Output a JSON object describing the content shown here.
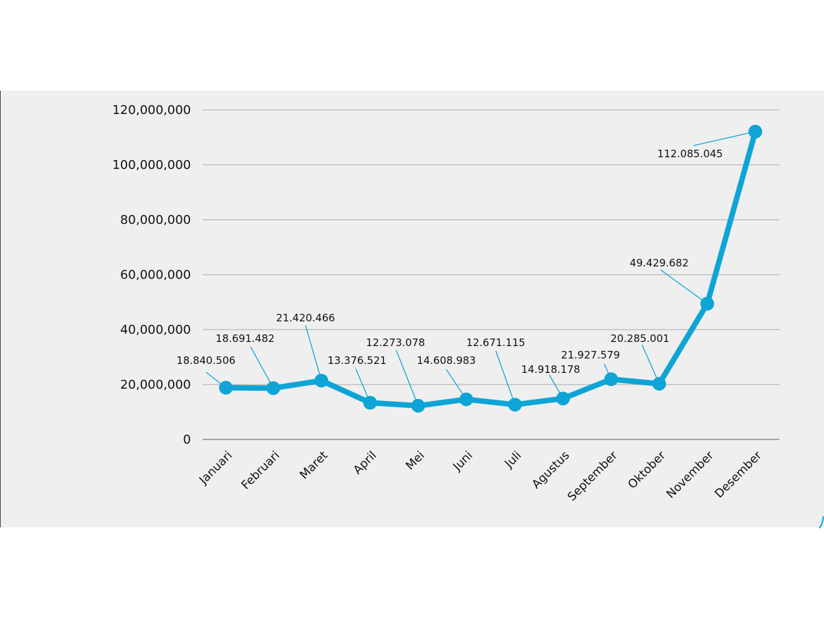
{
  "chart_data": {
    "type": "line",
    "title": "",
    "xlabel": "",
    "ylabel": "",
    "categories": [
      "Januari",
      "Februari",
      "Maret",
      "April",
      "Mei",
      "Juni",
      "Juli",
      "Agustus",
      "September",
      "Oktober",
      "November",
      "Desember"
    ],
    "series": [
      {
        "values": [
          18840506,
          18691482,
          21420466,
          13376521,
          12273078,
          14608983,
          12671115,
          14918178,
          21927579,
          20285001,
          49429682,
          112085045
        ],
        "color": "#0ea5d6"
      }
    ],
    "data_labels": [
      "18.840.506",
      "18.691.482",
      "21.420.466",
      "13.376.521",
      "12.273.078",
      "14.608.983",
      "12.671.115",
      "14.918.178",
      "21.927.579",
      "20.285.001",
      "49.429.682",
      "112.085.045"
    ],
    "yticks": [
      "0",
      "20,000,000",
      "40,000,000",
      "60,000,000",
      "80,000,000",
      "100,000,000",
      "120,000,000"
    ],
    "ylim": [
      0,
      120000000
    ],
    "grid": true,
    "legend": "none",
    "colors": {
      "background": "#efefef",
      "gridline": "#b8b8b8",
      "leader": "#0ea5d6"
    }
  }
}
